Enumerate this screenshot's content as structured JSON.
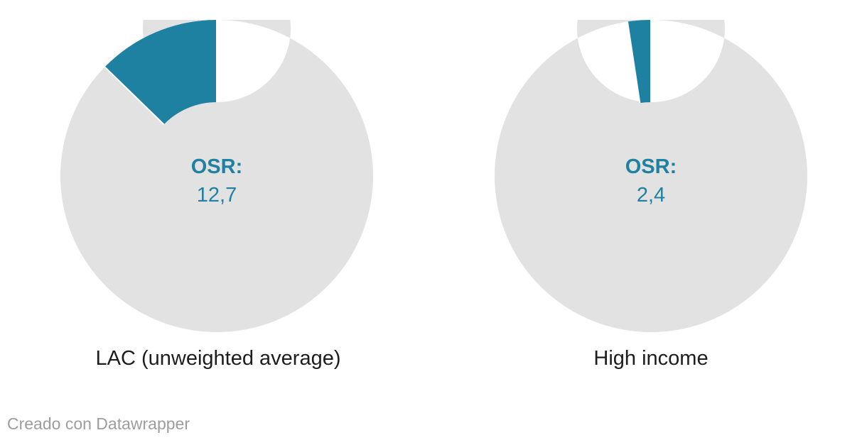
{
  "footer": {
    "attribution": "Creado con Datawrapper"
  },
  "colors": {
    "highlight": "#1f81a2",
    "track": "#e2e2e2",
    "separator": "#ffffff",
    "label_text": "#1d1d1d",
    "footer_text": "#9d9d9d"
  },
  "chart_data": [
    {
      "type": "pie",
      "subtype": "donut",
      "label": "LAC (unweighted average)",
      "center_label": "OSR:",
      "center_value": "12,7",
      "slices": [
        {
          "name": "OSR",
          "value": 12.7,
          "color": "#1f81a2"
        },
        {
          "name": "remainder",
          "value": 87.3,
          "color": "#e2e2e2"
        }
      ],
      "total": 100,
      "legend": "none",
      "start_angle_deg": 0,
      "highlight_direction": "counterclockwise-from-top"
    },
    {
      "type": "pie",
      "subtype": "donut",
      "label": "High income",
      "center_label": "OSR:",
      "center_value": "2,4",
      "slices": [
        {
          "name": "OSR",
          "value": 2.4,
          "color": "#1f81a2"
        },
        {
          "name": "remainder",
          "value": 97.6,
          "color": "#e2e2e2"
        }
      ],
      "total": 100,
      "legend": "none",
      "start_angle_deg": 0,
      "highlight_direction": "counterclockwise-from-top"
    }
  ]
}
